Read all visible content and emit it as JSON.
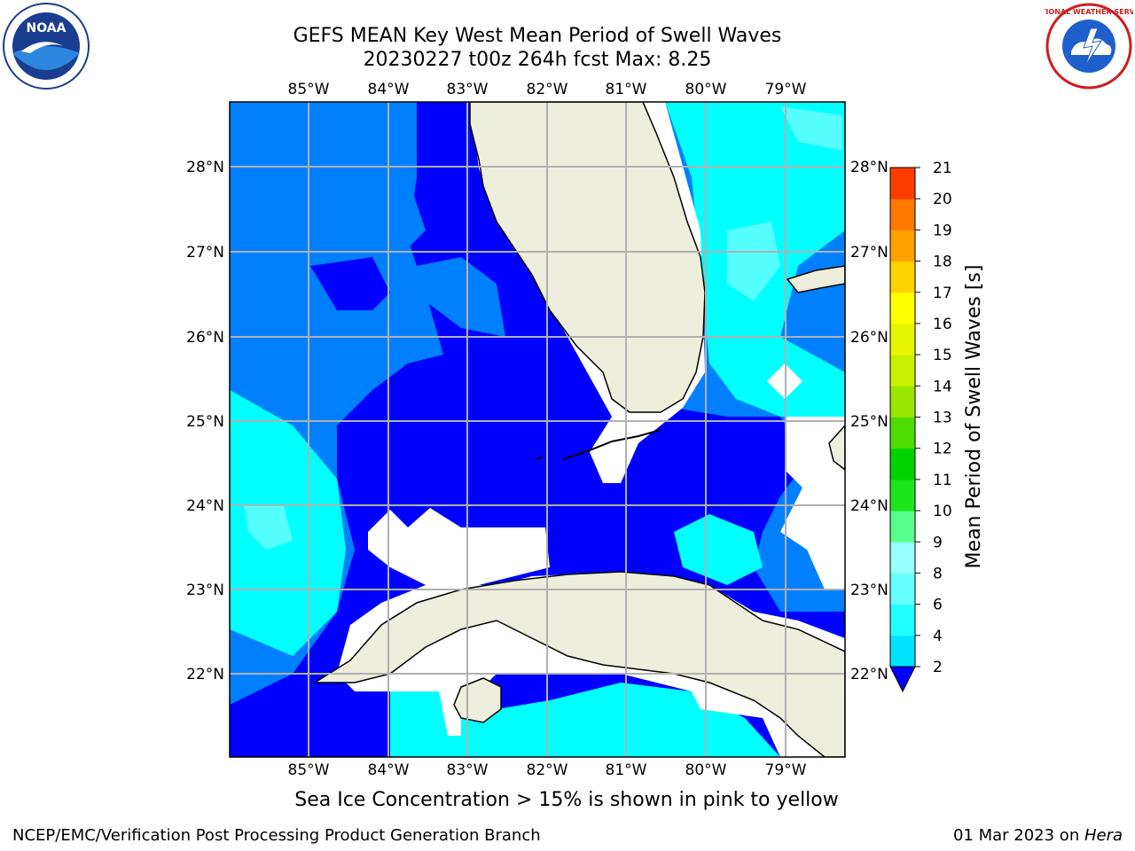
{
  "title": {
    "line1": "GEFS MEAN Key West Mean Period of Swell Waves",
    "line2": "20230227 t00z 264h fcst   Max: 8.25"
  },
  "map": {
    "lon_labels": [
      "85°W",
      "84°W",
      "83°W",
      "82°W",
      "81°W",
      "80°W",
      "79°W"
    ],
    "lat_labels": [
      "28°N",
      "27°N",
      "26°N",
      "25°N",
      "24°N",
      "23°N",
      "22°N"
    ],
    "colors": {
      "land": "#eeeedc",
      "deep_blue": "#0000ff",
      "mid_blue": "#0080ff",
      "cyan": "#00ffff",
      "light_cyan": "#55ffff",
      "grid": "#b0b0b0"
    }
  },
  "colorbar": {
    "label": "Mean Period of Swell Waves [s]",
    "ticks": [
      "2",
      "4",
      "6",
      "8",
      "9",
      "10",
      "11",
      "12",
      "13",
      "14",
      "15",
      "16",
      "17",
      "18",
      "19",
      "20",
      "21"
    ],
    "colors": [
      "#0064ff",
      "#00e1ff",
      "#22ffff",
      "#66ffff",
      "#99ffff",
      "#55ff88",
      "#1ae61a",
      "#00d200",
      "#4ddc00",
      "#99e600",
      "#c8f000",
      "#e6f500",
      "#ffff00",
      "#ffd200",
      "#ffa000",
      "#ff7800",
      "#ff3c00",
      "#ff0000"
    ]
  },
  "note": "Sea Ice Concentration > 15% is shown in pink to yellow",
  "footer": {
    "left": "NCEP/EMC/Verification Post Processing Product Generation Branch",
    "date": "01 Mar 2023 on ",
    "machine": "Hera"
  },
  "logos": {
    "left_text": "NOAA",
    "right_text": "NATIONAL WEATHER SERVICE"
  }
}
